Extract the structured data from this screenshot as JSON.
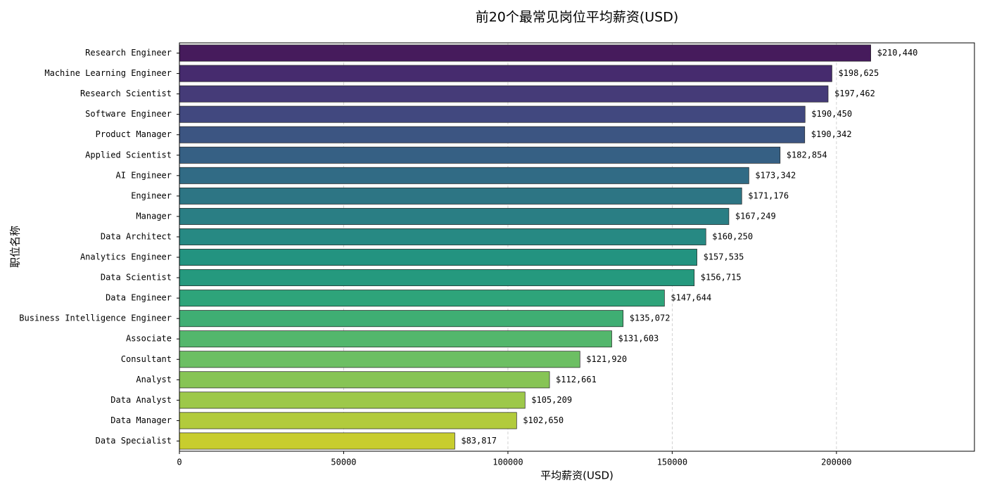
{
  "chart_data": {
    "type": "hbar",
    "title": "前20个最常见岗位平均薪资(USD)",
    "x_label": "平均薪资(USD)",
    "y_label": "职位名称",
    "categories": [
      "Research Engineer",
      "Machine Learning Engineer",
      "Research Scientist",
      "Software Engineer",
      "Product Manager",
      "Applied Scientist",
      "AI Engineer",
      "Engineer",
      "Manager",
      "Data Architect",
      "Analytics Engineer",
      "Data Scientist",
      "Data Engineer",
      "Business Intelligence Engineer",
      "Associate",
      "Consultant",
      "Analyst",
      "Data Analyst",
      "Data Manager",
      "Data Specialist"
    ],
    "values": [
      210440,
      198625,
      197462,
      190450,
      190342,
      182854,
      173342,
      171176,
      167249,
      160250,
      157535,
      156715,
      147644,
      135072,
      131603,
      121920,
      112661,
      105209,
      102650,
      83817
    ],
    "value_labels": [
      "$210,440",
      "$198,625",
      "$197,462",
      "$190,450",
      "$190,342",
      "$182,854",
      "$173,342",
      "$171,176",
      "$167,249",
      "$160,250",
      "$157,535",
      "$156,715",
      "$147,644",
      "$135,072",
      "$131,603",
      "$121,920",
      "$112,661",
      "$105,209",
      "$102,650",
      "$83,817"
    ],
    "colors": [
      "#461b5c",
      "#462b6e",
      "#453b78",
      "#41487f",
      "#3c5582",
      "#366084",
      "#316b85",
      "#2d7584",
      "#2a7e84",
      "#278983",
      "#239380",
      "#25997e",
      "#2ea47a",
      "#3fae73",
      "#53b76c",
      "#6cbf63",
      "#87c455",
      "#9dc84a",
      "#b2cb3c",
      "#c8cd2e"
    ],
    "xlim": [
      0,
      242006
    ],
    "xticks": [
      0,
      50000,
      100000,
      150000,
      200000
    ],
    "grid": true
  }
}
